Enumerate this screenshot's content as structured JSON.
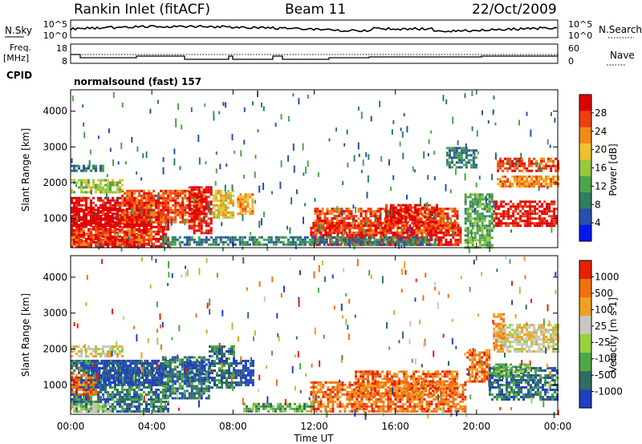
{
  "header": {
    "station": "Rankin Inlet (fitACF)",
    "beam": "Beam 11",
    "date": "22/Oct/2009"
  },
  "noise_panel": {
    "left_label": "N.Sky",
    "right_label": "N.Search",
    "left_ticks": [
      "10^5",
      "10^0"
    ],
    "right_ticks": [
      "10^5",
      "10^0"
    ]
  },
  "freq_panel": {
    "left_label_1": "Freq.",
    "left_label_2": "[MHz]",
    "right_label": "Nave",
    "left_ticks": [
      "18",
      "8"
    ],
    "right_ticks": [
      "60",
      "0"
    ]
  },
  "cpid": {
    "label": "CPID",
    "mode": "normalsound (fast) 157"
  },
  "time_axis": {
    "label": "Time UT",
    "ticks": [
      "00:00",
      "04:00",
      "08:00",
      "12:00",
      "16:00",
      "20:00",
      "00:00"
    ]
  },
  "chart_data": [
    {
      "type": "heatmap",
      "name": "Power",
      "ylabel": "Slant Range [km]",
      "colorbar_label": "Power [dB]",
      "colorbar_ticks": [
        "28",
        "24",
        "20",
        "16",
        "12",
        "8",
        "4"
      ],
      "colorbar_range": [
        0,
        32
      ],
      "colors": [
        "#0018f0",
        "#2a4fa8",
        "#2f7e62",
        "#4ea44a",
        "#98c83c",
        "#f0c030",
        "#f08a18",
        "#f04010",
        "#e00000"
      ],
      "y_ticks": [
        "1000",
        "2000",
        "3000",
        "4000"
      ],
      "y_range_km": [
        180,
        4600
      ],
      "x_range_hours": [
        0,
        24
      ],
      "regions": [
        {
          "t0": 0.0,
          "t1": 4.8,
          "r0": 250,
          "r1": 1600,
          "level": 8
        },
        {
          "t0": 0.0,
          "t1": 3.8,
          "r0": 800,
          "r1": 1300,
          "level": 9
        },
        {
          "t0": 0.0,
          "t1": 4.0,
          "r0": 250,
          "r1": 700,
          "level": 7
        },
        {
          "t0": 2.5,
          "t1": 6.6,
          "r0": 900,
          "r1": 1800,
          "level": 7
        },
        {
          "t0": 5.8,
          "t1": 6.9,
          "r0": 600,
          "r1": 1900,
          "level": 8
        },
        {
          "t0": 7.0,
          "t1": 8.0,
          "r0": 1000,
          "r1": 1800,
          "level": 5
        },
        {
          "t0": 8.2,
          "t1": 9.0,
          "r0": 1100,
          "r1": 1700,
          "level": 6
        },
        {
          "t0": 0.0,
          "t1": 2.5,
          "r0": 1700,
          "r1": 2100,
          "level": 4
        },
        {
          "t0": 0.0,
          "t1": 1.6,
          "r0": 2300,
          "r1": 2500,
          "level": 2
        },
        {
          "t0": 11.8,
          "t1": 19.2,
          "r0": 250,
          "r1": 900,
          "level": 8
        },
        {
          "t0": 12.0,
          "t1": 19.0,
          "r0": 600,
          "r1": 1300,
          "level": 7
        },
        {
          "t0": 15.5,
          "t1": 18.0,
          "r0": 900,
          "r1": 1400,
          "level": 8
        },
        {
          "t0": 20.8,
          "t1": 24.0,
          "r0": 800,
          "r1": 1500,
          "level": 8
        },
        {
          "t0": 19.4,
          "t1": 20.8,
          "r0": 200,
          "r1": 1700,
          "level": 3
        },
        {
          "t0": 21.0,
          "t1": 24.0,
          "r0": 2300,
          "r1": 2700,
          "level": 7
        },
        {
          "t0": 21.0,
          "t1": 24.0,
          "r0": 1900,
          "r1": 2200,
          "level": 6
        },
        {
          "t0": 18.5,
          "t1": 20.0,
          "r0": 2400,
          "r1": 3000,
          "level": 2
        },
        {
          "t0": 4.5,
          "t1": 18.0,
          "r0": 250,
          "r1": 500,
          "level": 2
        }
      ]
    },
    {
      "type": "heatmap",
      "name": "Velocity",
      "ylabel": "Slant Range [km]",
      "colorbar_label": "Velocity [m s-1]",
      "colorbar_ticks": [
        "1000",
        "500",
        "100",
        "25",
        "-25",
        "-100",
        "-500",
        "-1000"
      ],
      "colorbar_range": [
        -1200,
        1200
      ],
      "colors": [
        "#2040c0",
        "#2f6e62",
        "#4ea84a",
        "#98d040",
        "#c8c8c0",
        "#f0a020",
        "#f07010",
        "#e82000"
      ],
      "y_ticks": [
        "1000",
        "2000",
        "3000",
        "4000"
      ],
      "y_range_km": [
        180,
        4600
      ],
      "x_range_hours": [
        0,
        24
      ],
      "regions": [
        {
          "t0": 0.0,
          "t1": 4.8,
          "r0": 250,
          "r1": 1700,
          "level": 1
        },
        {
          "t0": 1.0,
          "t1": 4.5,
          "r0": 1000,
          "r1": 1700,
          "level": 0
        },
        {
          "t0": 4.5,
          "t1": 6.8,
          "r0": 600,
          "r1": 1800,
          "level": 1
        },
        {
          "t0": 5.6,
          "t1": 6.6,
          "r0": 1100,
          "r1": 1700,
          "level": 0
        },
        {
          "t0": 6.8,
          "t1": 8.0,
          "r0": 900,
          "r1": 2100,
          "level": 1
        },
        {
          "t0": 8.1,
          "t1": 9.0,
          "r0": 1000,
          "r1": 1700,
          "level": 0
        },
        {
          "t0": 0.0,
          "t1": 1.2,
          "r0": 700,
          "r1": 1300,
          "level": 6
        },
        {
          "t0": 0.0,
          "t1": 2.5,
          "r0": 1800,
          "r1": 2100,
          "level": 4
        },
        {
          "t0": 0.0,
          "t1": 2.0,
          "r0": 250,
          "r1": 500,
          "level": 3
        },
        {
          "t0": 11.8,
          "t1": 19.5,
          "r0": 250,
          "r1": 1100,
          "level": 6
        },
        {
          "t0": 14.0,
          "t1": 19.0,
          "r0": 700,
          "r1": 1400,
          "level": 6
        },
        {
          "t0": 8.5,
          "t1": 12.0,
          "r0": 250,
          "r1": 500,
          "level": 2
        },
        {
          "t0": 19.5,
          "t1": 20.6,
          "r0": 1100,
          "r1": 2000,
          "level": 6
        },
        {
          "t0": 20.6,
          "t1": 24.0,
          "r0": 600,
          "r1": 1500,
          "level": 1
        },
        {
          "t0": 20.8,
          "t1": 22.5,
          "r0": 1200,
          "r1": 1600,
          "level": 2
        },
        {
          "t0": 21.0,
          "t1": 24.0,
          "r0": 1900,
          "r1": 2700,
          "level": 4
        },
        {
          "t0": 20.8,
          "t1": 21.3,
          "r0": 2000,
          "r1": 3000,
          "level": 5
        }
      ]
    }
  ]
}
